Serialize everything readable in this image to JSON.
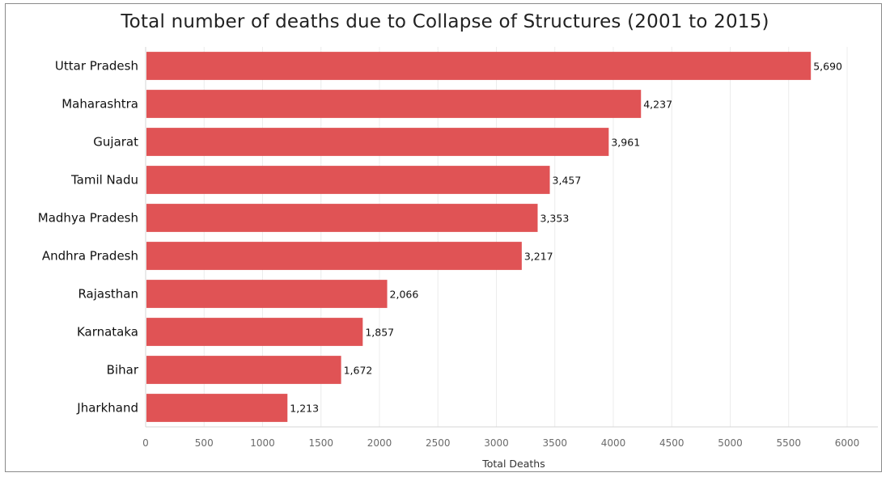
{
  "chart_data": {
    "type": "bar",
    "orientation": "horizontal",
    "title": "Total number of deaths due to Collapse of Structures (2001 to 2015)",
    "xlabel": "Total Deaths",
    "ylabel": "",
    "categories": [
      "Uttar Pradesh",
      "Maharashtra",
      "Gujarat",
      "Tamil Nadu",
      "Madhya Pradesh",
      "Andhra Pradesh",
      "Rajasthan",
      "Karnataka",
      "Bihar",
      "Jharkhand"
    ],
    "values": [
      5690,
      4237,
      3961,
      3457,
      3353,
      3217,
      2066,
      1857,
      1672,
      1213
    ],
    "value_labels": [
      "5,690",
      "4,237",
      "3,961",
      "3,457",
      "3,353",
      "3,217",
      "2,066",
      "1,857",
      "1,672",
      "1,213"
    ],
    "xlim": [
      0,
      6000
    ],
    "xticks": [
      "0",
      "500",
      "1000",
      "1500",
      "2000",
      "2500",
      "3000",
      "3500",
      "4000",
      "4500",
      "5000",
      "5500",
      "6000"
    ],
    "bar_color": "#e05355",
    "grid": true
  }
}
